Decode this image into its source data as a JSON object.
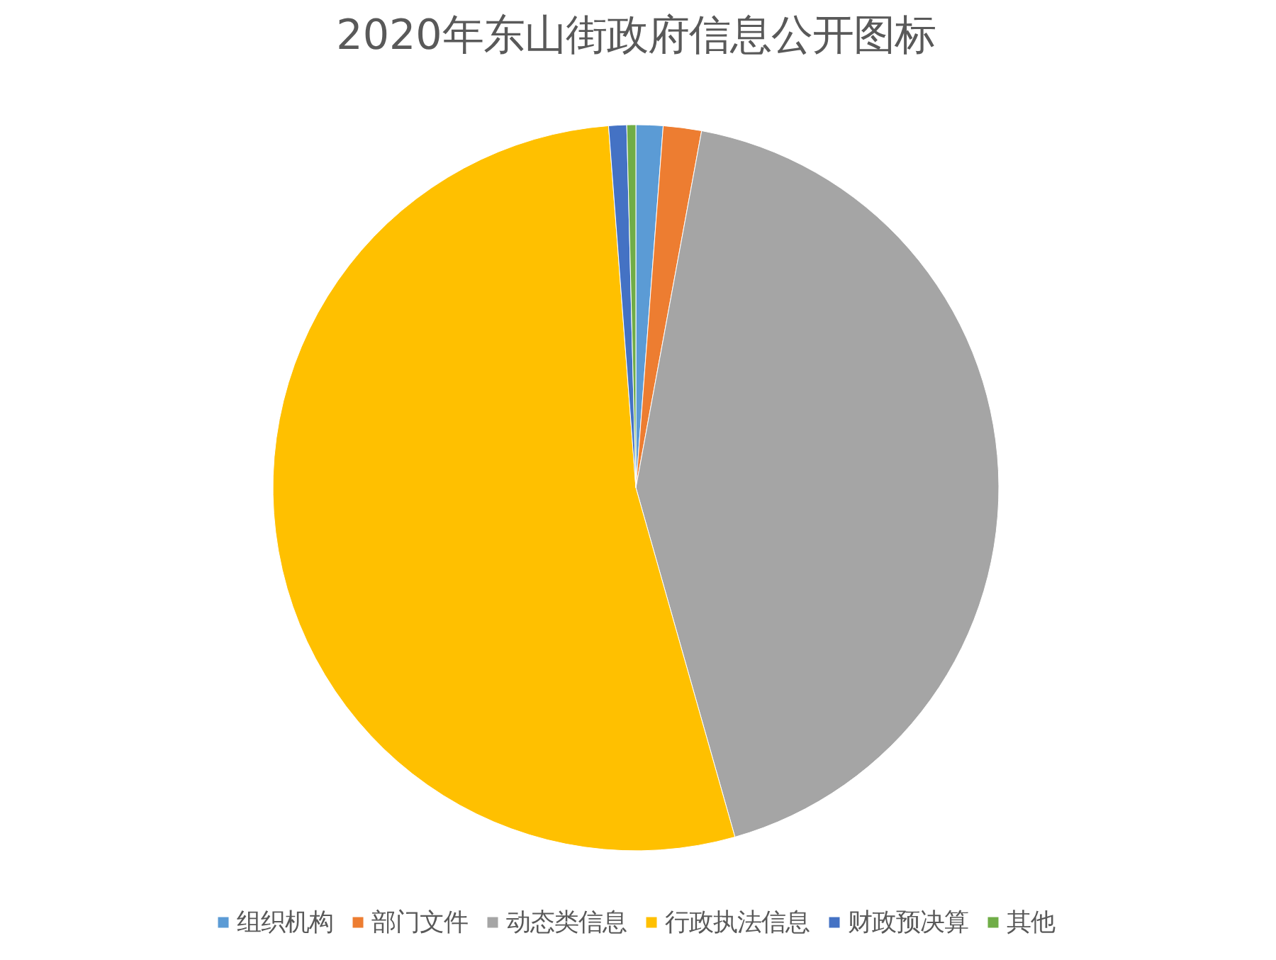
{
  "chart_data": {
    "type": "pie",
    "title": "2020年东山街政府信息公开图标",
    "categories": [
      "组织机构",
      "部门文件",
      "动态类信息",
      "行政执法信息",
      "财政预决算",
      "其他"
    ],
    "values": [
      1.2,
      1.7,
      42.7,
      53.2,
      0.8,
      0.4
    ],
    "colors": [
      "#5b9bd5",
      "#ed7d31",
      "#a5a5a5",
      "#ffc000",
      "#4472c4",
      "#70ad47"
    ],
    "legend": "bottom"
  }
}
